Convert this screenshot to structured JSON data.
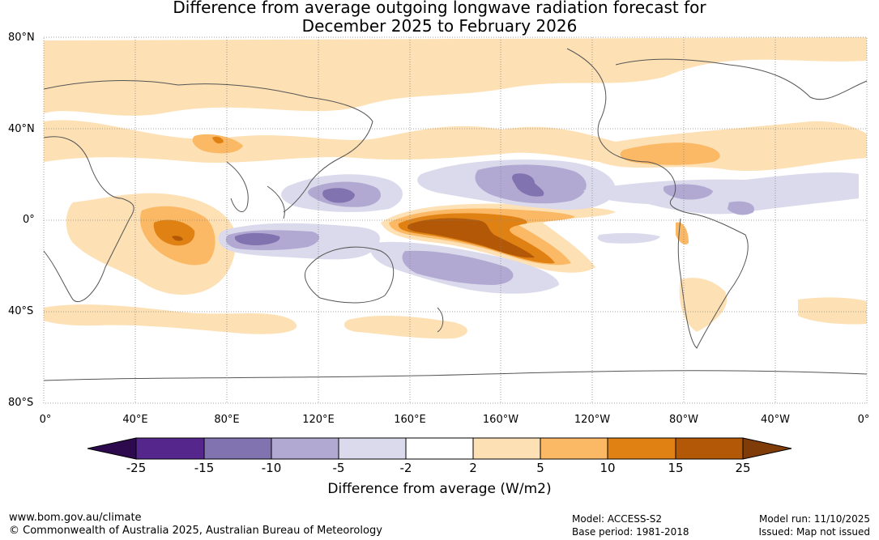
{
  "title": {
    "line1": "Difference from average outgoing longwave radiation forecast for",
    "line2": "December 2025 to February 2026"
  },
  "axes": {
    "lat_labels": [
      "80°N",
      "40°N",
      "0°",
      "40°S",
      "80°S"
    ],
    "lon_labels": [
      "0°",
      "40°E",
      "80°E",
      "120°E",
      "160°E",
      "160°W",
      "120°W",
      "80°W",
      "40°W",
      "0°"
    ]
  },
  "colorbar": {
    "ticks": [
      "-25",
      "-15",
      "-10",
      "-5",
      "-2",
      "2",
      "5",
      "10",
      "15",
      "25"
    ],
    "colors": [
      "#2d0a4e",
      "#55278c",
      "#8173b0",
      "#b1a9d2",
      "#dadaec",
      "#ffffff",
      "#fde0b3",
      "#fbb865",
      "#e08213",
      "#b35806",
      "#7f3b08"
    ],
    "label": "Difference from average (W/m2)"
  },
  "footer": {
    "url": "www.bom.gov.au/climate",
    "copyright": "© Commonwealth of Australia 2025, Australian Bureau of Meteorology",
    "model": "Model: ACCESS-S2",
    "base_period": "Base period: 1981-2018",
    "model_run": "Model run: 11/10/2025",
    "issued": "Issued: Map not issued"
  }
}
